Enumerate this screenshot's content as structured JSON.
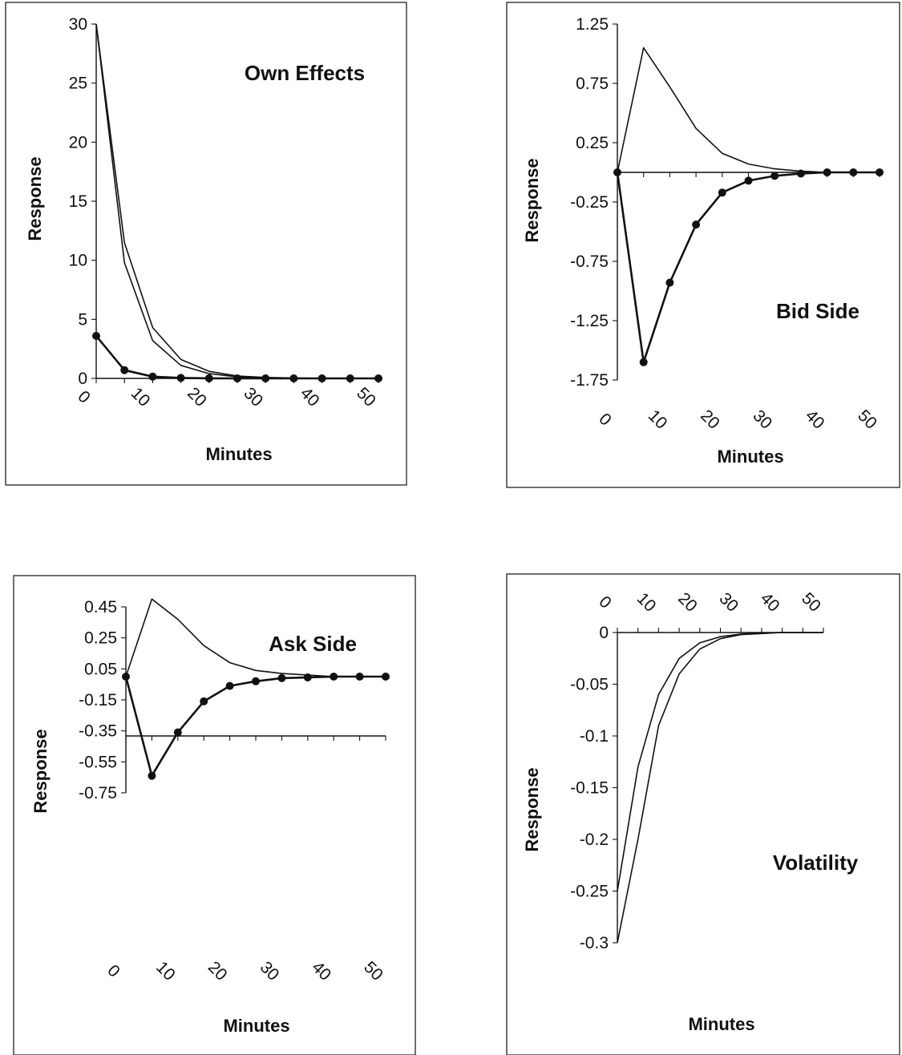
{
  "chart_data": [
    {
      "type": "line",
      "title": "Own Effects",
      "xlabel": "Minutes",
      "ylabel": "Response",
      "x": [
        0,
        5,
        10,
        15,
        20,
        25,
        30,
        35,
        40,
        45,
        50
      ],
      "x_ticks": [
        "0",
        "10",
        "20",
        "30",
        "40",
        "50"
      ],
      "y_ticks": [
        "30",
        "25",
        "20",
        "15",
        "10",
        "5",
        "0"
      ],
      "ylim": [
        0,
        30
      ],
      "series": [
        {
          "values": [
            30,
            11.5,
            4.3,
            1.6,
            0.6,
            0.2,
            0.08,
            0.03,
            0.01,
            0,
            0
          ],
          "markers": false
        },
        {
          "values": [
            30,
            9.8,
            3.2,
            1.1,
            0.4,
            0.13,
            0.05,
            0.02,
            0.01,
            0,
            0
          ],
          "markers": false
        },
        {
          "values": [
            3.6,
            0.7,
            0.15,
            0.04,
            0.01,
            0,
            0,
            0,
            0,
            0,
            0
          ],
          "markers": true
        }
      ]
    },
    {
      "type": "line",
      "title": "Bid Side",
      "xlabel": "Minutes",
      "ylabel": "Response",
      "x": [
        0,
        5,
        10,
        15,
        20,
        25,
        30,
        35,
        40,
        45,
        50
      ],
      "x_ticks": [
        "0",
        "10",
        "20",
        "30",
        "40",
        "50"
      ],
      "y_ticks": [
        "1.25",
        "0.75",
        "0.25",
        "-0.25",
        "-0.75",
        "-1.25",
        "-1.75"
      ],
      "ylim": [
        -1.75,
        1.25
      ],
      "series": [
        {
          "values": [
            0,
            1.05,
            0.72,
            0.37,
            0.16,
            0.07,
            0.03,
            0.01,
            0,
            0,
            0
          ],
          "markers": false
        },
        {
          "values": [
            0,
            -1.6,
            -0.93,
            -0.44,
            -0.17,
            -0.07,
            -0.03,
            -0.01,
            0,
            0,
            0
          ],
          "markers": true
        }
      ]
    },
    {
      "type": "line",
      "title": "Ask Side",
      "xlabel": "Minutes",
      "ylabel": "Response",
      "x": [
        0,
        5,
        10,
        15,
        20,
        25,
        30,
        35,
        40,
        45,
        50
      ],
      "x_ticks": [
        "0",
        "10",
        "20",
        "30",
        "40",
        "50"
      ],
      "y_ticks": [
        "0.45",
        "0.25",
        "0.05",
        "-0.15",
        "-0.35",
        "-0.55",
        "-0.75"
      ],
      "ylim": [
        -0.75,
        0.45
      ],
      "series": [
        {
          "values": [
            0,
            0.5,
            0.37,
            0.2,
            0.09,
            0.04,
            0.02,
            0.01,
            0,
            0,
            0
          ],
          "markers": false
        },
        {
          "values": [
            0,
            -0.64,
            -0.36,
            -0.16,
            -0.06,
            -0.03,
            -0.01,
            -0.005,
            0,
            0,
            0
          ],
          "markers": true
        }
      ]
    },
    {
      "type": "line",
      "title": "Volatility",
      "xlabel": "Minutes",
      "ylabel": "Response",
      "x": [
        0,
        5,
        10,
        15,
        20,
        25,
        30,
        35,
        40,
        45,
        50
      ],
      "x_ticks": [
        "0",
        "10",
        "20",
        "30",
        "40",
        "50"
      ],
      "y_ticks": [
        "0",
        "-0.05",
        "-0.1",
        "-0.15",
        "-0.2",
        "-0.25",
        "-0.3"
      ],
      "ylim": [
        -0.3,
        0
      ],
      "series": [
        {
          "values": [
            -0.25,
            -0.13,
            -0.06,
            -0.025,
            -0.01,
            -0.004,
            -0.0015,
            -0.0005,
            0,
            0,
            0
          ],
          "markers": false
        },
        {
          "values": [
            -0.3,
            -0.2,
            -0.09,
            -0.04,
            -0.016,
            -0.006,
            -0.002,
            -0.001,
            0,
            0,
            0
          ],
          "markers": false
        }
      ]
    }
  ]
}
